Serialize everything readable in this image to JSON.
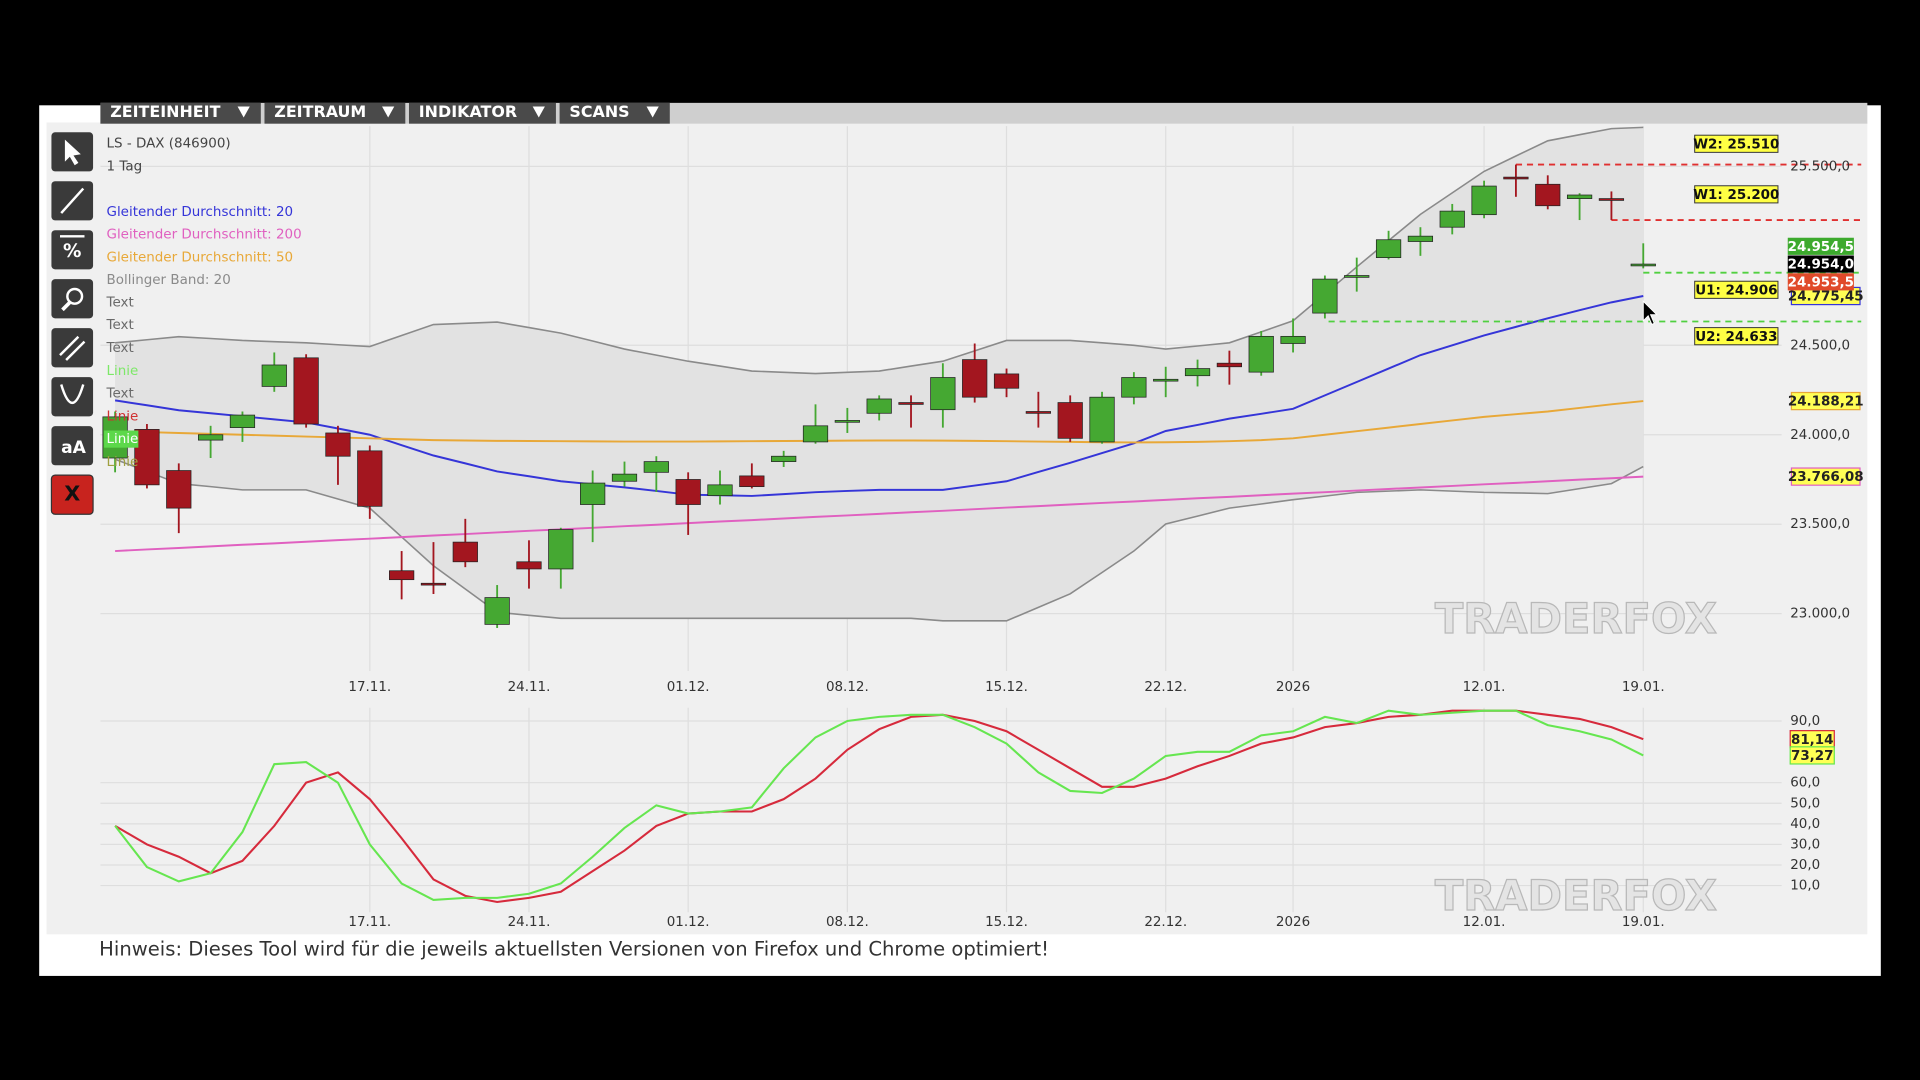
{
  "menu": [
    "ZEITEINHEIT",
    "ZEITRAUM",
    "INDIKATOR",
    "SCANS"
  ],
  "toolbar": {
    "percent": "%",
    "text": "aA",
    "close": "X"
  },
  "legend": {
    "instrument": "LS - DAX (846900)",
    "period": "1 Tag",
    "annotations": [
      {
        "text": "Text",
        "color": "#6a6a6a"
      },
      {
        "text": "Text",
        "color": "#6a6a6a"
      },
      {
        "text": "Text",
        "color": "#6a6a6a"
      },
      {
        "text": "Linie",
        "color": "#7de868"
      },
      {
        "text": "Text",
        "color": "#6a6a6a"
      },
      {
        "text": "Linie",
        "color": "#d03030"
      },
      {
        "text": "Linie",
        "color": "#ffffff",
        "background": "#5cd84a"
      },
      {
        "text": "Linie",
        "color": "#a0a040"
      }
    ]
  },
  "watermark": "TRADERFOX",
  "footer": "Hinweis: Dieses Tool wird für die jeweils aktuellsten Versionen von Firefox und Chrome optimiert!",
  "chart_data": [
    {
      "type": "candlestick",
      "categories": [
        null,
        null,
        null,
        null,
        null,
        null,
        null,
        null,
        "17.11.",
        null,
        null,
        null,
        null,
        "24.11.",
        null,
        null,
        null,
        null,
        "01.12.",
        null,
        null,
        null,
        null,
        "08.12.",
        null,
        null,
        null,
        null,
        "15.12.",
        null,
        null,
        null,
        null,
        "22.12.",
        null,
        null,
        null,
        "2026",
        null,
        null,
        null,
        null,
        null,
        "12.01.",
        null,
        null,
        null,
        null,
        "19.01."
      ],
      "open": [
        23870,
        24030,
        23800,
        23970,
        24040,
        24270,
        24430,
        24010,
        23910,
        23240,
        23170,
        23400,
        22940,
        23290,
        23250,
        23610,
        23740,
        23790,
        23750,
        23660,
        23770,
        23850,
        23960,
        24070,
        24120,
        24180,
        24140,
        24420,
        24340,
        24130,
        24180,
        23960,
        24210,
        24310,
        24330,
        24400,
        24350,
        24510,
        24680,
        24880,
        24990,
        25080,
        25160,
        25230,
        25440,
        25400,
        25320,
        25320,
        24950
      ],
      "high": [
        24130,
        24060,
        23840,
        24050,
        24130,
        24460,
        24450,
        24050,
        23940,
        23350,
        23400,
        23530,
        23160,
        23410,
        23480,
        23800,
        23850,
        23880,
        23790,
        23800,
        23840,
        23910,
        24170,
        24150,
        24220,
        24220,
        24400,
        24510,
        24370,
        24240,
        24220,
        24240,
        24350,
        24380,
        24420,
        24470,
        24580,
        24650,
        24890,
        24990,
        25140,
        25160,
        25290,
        25420,
        25510,
        25450,
        25350,
        25360,
        25070
      ],
      "low": [
        23790,
        23700,
        23450,
        23870,
        23960,
        24240,
        24040,
        23720,
        23530,
        23080,
        23110,
        23260,
        22920,
        23140,
        23140,
        23400,
        23710,
        23680,
        23440,
        23610,
        23700,
        23820,
        23950,
        24010,
        24080,
        24040,
        24040,
        24180,
        24210,
        24040,
        23960,
        23950,
        24170,
        24210,
        24270,
        24280,
        24330,
        24460,
        24650,
        24800,
        24980,
        25000,
        25120,
        25210,
        25330,
        25260,
        25200,
        25200,
        24930
      ],
      "close": [
        24100,
        23720,
        23590,
        24000,
        24110,
        24390,
        24060,
        23880,
        23600,
        23190,
        23160,
        23290,
        23090,
        23250,
        23470,
        23730,
        23780,
        23850,
        23610,
        23720,
        23710,
        23880,
        24050,
        24080,
        24200,
        24170,
        24320,
        24210,
        24260,
        24120,
        23980,
        24210,
        24320,
        24310,
        24370,
        24380,
        24550,
        24550,
        24870,
        24890,
        25090,
        25110,
        25250,
        25390,
        25430,
        25280,
        25340,
        25310,
        24954
      ],
      "up_color": "#45a832",
      "down_color": "#a3161f",
      "ylim": [
        22700,
        25725
      ],
      "yticks": [
        {
          "value": 23000,
          "label": "23.000,0"
        },
        {
          "value": 23500,
          "label": "23.500,0"
        },
        {
          "value": 24000,
          "label": "24.000,0"
        },
        {
          "value": 24500,
          "label": "24.500,0"
        },
        {
          "value": 25500,
          "label": "25.500,0"
        }
      ],
      "grid": true,
      "bollinger": {
        "name": "Bollinger Band: 20",
        "color": "#8a8a8a",
        "fill": "#e2e2e2",
        "upper": [
          24514,
          24531,
          24548,
          24538,
          24527,
          24520,
          24514,
          24503,
          24493,
          24555,
          24616,
          24623,
          24630,
          24599,
          24568,
          24524,
          24479,
          24445,
          24411,
          24384,
          24356,
          24349,
          24342,
          24349,
          24356,
          24384,
          24411,
          24469,
          24527,
          24527,
          24527,
          24514,
          24500,
          24479,
          24496,
          24514,
          24575,
          24637,
          24787,
          24938,
          25085,
          25232,
          25352,
          25472,
          25558,
          25643,
          25677,
          25711,
          25718
        ],
        "lower": [
          23863,
          23795,
          23727,
          23710,
          23692,
          23692,
          23692,
          23641,
          23590,
          23429,
          23268,
          23138,
          23008,
          22991,
          22974,
          22974,
          22974,
          22974,
          22974,
          22974,
          22974,
          22974,
          22974,
          22974,
          22974,
          22974,
          22960,
          22960,
          22960,
          23035,
          23111,
          23230,
          23350,
          23501,
          23545,
          23590,
          23613,
          23637,
          23657,
          23678,
          23685,
          23692,
          23685,
          23678,
          23675,
          23671,
          23699,
          23727,
          23822
        ]
      },
      "lines": [
        {
          "name": "Gleitender Durchschnitt: 20",
          "color": "#3535d8",
          "end_label": "24.775,45",
          "values": [
            24192,
            24165,
            24137,
            24120,
            24103,
            24086,
            24069,
            24035,
            24000,
            23942,
            23884,
            23840,
            23795,
            23768,
            23740,
            23723,
            23706,
            23686,
            23665,
            23662,
            23658,
            23668,
            23679,
            23686,
            23692,
            23692,
            23692,
            23716,
            23740,
            23792,
            23843,
            23898,
            23952,
            24021,
            24055,
            24090,
            24117,
            24145,
            24220,
            24295,
            24370,
            24445,
            24500,
            24555,
            24603,
            24651,
            24696,
            24740,
            24775.45
          ]
        },
        {
          "name": "Gleitender Durchschnitt: 200",
          "color": "#e060c0",
          "end_label": "23.766,08",
          "values": [
            23350,
            23359,
            23367,
            23376,
            23385,
            23393,
            23402,
            23411,
            23419,
            23428,
            23437,
            23445,
            23454,
            23463,
            23471,
            23480,
            23489,
            23497,
            23506,
            23515,
            23523,
            23532,
            23541,
            23549,
            23558,
            23567,
            23575,
            23584,
            23593,
            23601,
            23610,
            23619,
            23627,
            23636,
            23645,
            23653,
            23662,
            23671,
            23679,
            23688,
            23697,
            23705,
            23714,
            23723,
            23731,
            23740,
            23749,
            23757,
            23766.08
          ]
        },
        {
          "name": "Gleitender Durchschnitt: 50",
          "color": "#e8a838",
          "end_label": "24.188,21",
          "values": [
            24020,
            24015,
            24010,
            24005,
            24000,
            23995,
            23990,
            23985,
            23980,
            23975,
            23970,
            23968,
            23966,
            23965,
            23964,
            23963,
            23962,
            23962,
            23962,
            23963,
            23964,
            23965,
            23966,
            23967,
            23968,
            23968,
            23967,
            23966,
            23964,
            23962,
            23960,
            23958,
            23957,
            23958,
            23960,
            23964,
            23970,
            23980,
            24000,
            24020,
            24040,
            24060,
            24080,
            24100,
            24115,
            24130,
            24150,
            24170,
            24188.21
          ]
        }
      ],
      "levels": [
        {
          "label": "W2: 25.510",
          "value": 25510,
          "color": "#e03030"
        },
        {
          "label": "W1: 25.200",
          "value": 25200,
          "color": "#e03030"
        },
        {
          "label": "U1: 24.906",
          "value": 24906,
          "color": "#50d040"
        },
        {
          "label": "U2: 24.633",
          "value": 24633,
          "color": "#50d040"
        }
      ],
      "price_tags": [
        {
          "label": "24.954,5",
          "value": 24954.5,
          "color": "#3daa2e"
        },
        {
          "label": "24.954,0",
          "value": 24954,
          "color": "#000000"
        },
        {
          "label": "24.953,5",
          "value": 24953.5,
          "color": "#e04a2a"
        }
      ]
    },
    {
      "type": "line",
      "categories": [
        null,
        null,
        null,
        null,
        null,
        null,
        null,
        null,
        "17.11.",
        null,
        null,
        null,
        null,
        "24.11.",
        null,
        null,
        null,
        null,
        "01.12.",
        null,
        null,
        null,
        null,
        "08.12.",
        null,
        null,
        null,
        null,
        "15.12.",
        null,
        null,
        null,
        null,
        "22.12.",
        null,
        null,
        null,
        "2026",
        null,
        null,
        null,
        null,
        null,
        "12.01.",
        null,
        null,
        null,
        null,
        "19.01."
      ],
      "ylim": [
        0,
        100
      ],
      "yticks": [
        {
          "value": 10,
          "label": "10,0"
        },
        {
          "value": 20,
          "label": "20,0"
        },
        {
          "value": 30,
          "label": "30,0"
        },
        {
          "value": 40,
          "label": "40,0"
        },
        {
          "value": 50,
          "label": "50,0"
        },
        {
          "value": 60,
          "label": "60,0"
        },
        {
          "value": 90,
          "label": "90,0"
        }
      ],
      "grid": true,
      "series": [
        {
          "color": "#d62a3c",
          "end_label": "81,14",
          "values": [
            39,
            30,
            24,
            16,
            22,
            39,
            60,
            65,
            52,
            33,
            13,
            5,
            2,
            4,
            7,
            17,
            27,
            39,
            45,
            46,
            46,
            52,
            62,
            76,
            86,
            92,
            93,
            90,
            85,
            76,
            67,
            58,
            58,
            62,
            68,
            73,
            79,
            82,
            87,
            89,
            92,
            93,
            95,
            95,
            95,
            93,
            91,
            87,
            81.14
          ]
        },
        {
          "color": "#66e650",
          "end_label": "73,27",
          "values": [
            39,
            19,
            12,
            16,
            36,
            69,
            70,
            60,
            30,
            11,
            3,
            4,
            4,
            6,
            11,
            24,
            38,
            49,
            45,
            46,
            48,
            67,
            82,
            90,
            92,
            93,
            93,
            87,
            79,
            65,
            56,
            55,
            62,
            73,
            75,
            75,
            83,
            85,
            92,
            89,
            95,
            93,
            94,
            95,
            95,
            88,
            85,
            81,
            73.27
          ]
        }
      ]
    }
  ]
}
